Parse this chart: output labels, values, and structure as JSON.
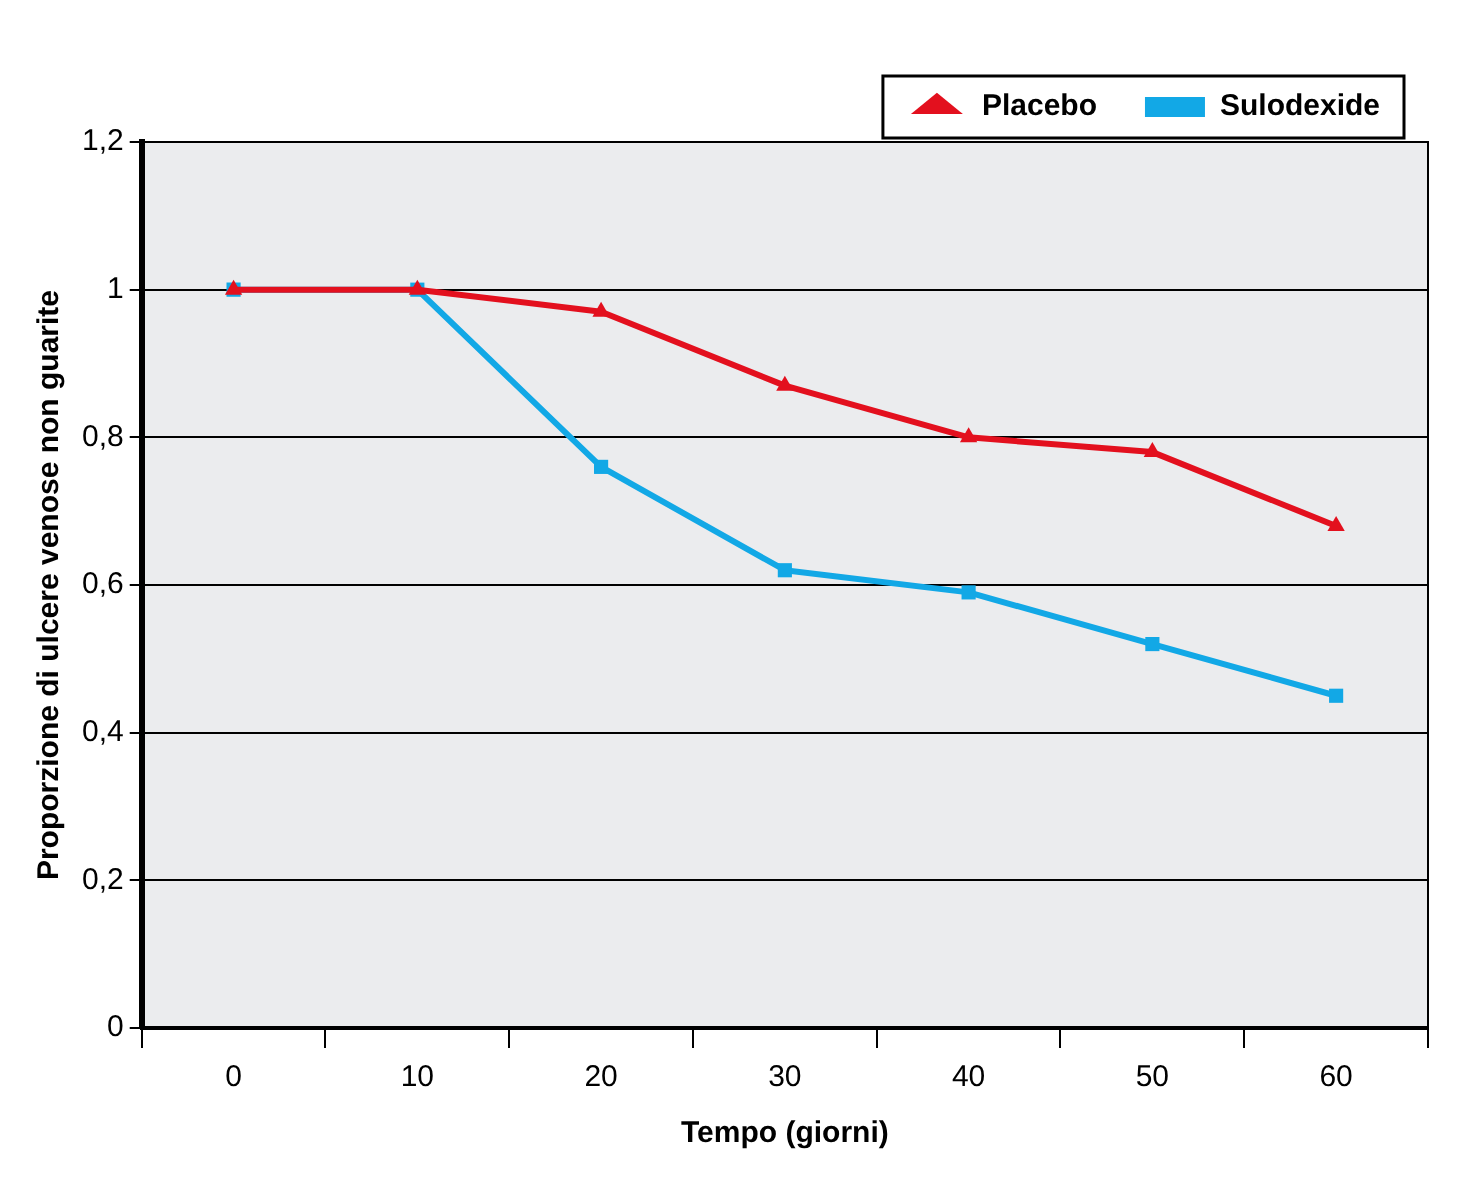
{
  "chart_data": {
    "type": "line",
    "xlabel": "Tempo (giorni)",
    "ylabel": "Proporzione di ulcere venose non guarite",
    "categories": [
      "0",
      "10",
      "20",
      "30",
      "40",
      "50",
      "60"
    ],
    "series": [
      {
        "name": "Sulodexide",
        "color": "#12a8e6",
        "marker": "square",
        "values": [
          1,
          1,
          0.76,
          0.62,
          0.59,
          0.52,
          0.45
        ]
      },
      {
        "name": "Placebo",
        "color": "#e3101e",
        "marker": "triangle",
        "values": [
          1,
          1,
          0.97,
          0.87,
          0.8,
          0.78,
          0.68
        ]
      }
    ],
    "ylim": [
      0,
      1.2
    ],
    "yticks": [
      0,
      {
        "value": 0.2,
        "label": "0,2"
      },
      {
        "value": 0.4,
        "label": "0,4"
      },
      {
        "value": 0.6,
        "label": "0,6"
      },
      {
        "value": 0.8,
        "label": "0,8"
      },
      1,
      {
        "value": 1.2,
        "label": "1,2"
      }
    ],
    "grid": "y",
    "legend": "top right",
    "line_style": "solid"
  }
}
